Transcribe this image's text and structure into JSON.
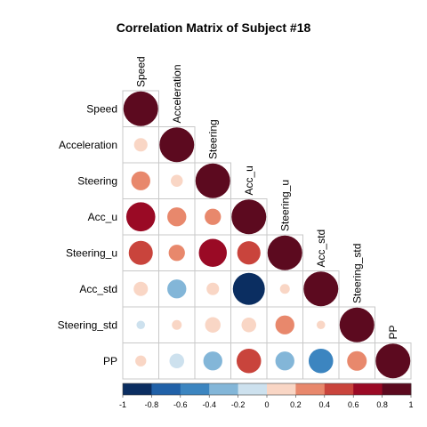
{
  "chart_data": {
    "type": "heatmap",
    "title": "Correlation Matrix of Subject #18",
    "shape": "lower-triangle circles",
    "variables": [
      "Speed",
      "Acceleration",
      "Steering",
      "Acc_u",
      "Steering_u",
      "Acc_std",
      "Steering_std",
      "PP"
    ],
    "matrix": [
      [
        1.0
      ],
      [
        0.15,
        1.0
      ],
      [
        0.3,
        0.12,
        1.0
      ],
      [
        0.7,
        0.3,
        0.22,
        1.0
      ],
      [
        0.48,
        0.22,
        0.65,
        0.45,
        1.0
      ],
      [
        0.17,
        -0.3,
        0.13,
        -0.85,
        0.08,
        1.0
      ],
      [
        -0.06,
        0.08,
        0.2,
        0.18,
        0.3,
        0.06,
        1.0
      ],
      [
        0.1,
        -0.18,
        -0.3,
        0.5,
        -0.3,
        -0.5,
        0.32,
        1.0
      ]
    ],
    "colorbar": {
      "ticks": [
        "-1",
        "-0.8",
        "-0.6",
        "-0.4",
        "-0.2",
        "0",
        "0.2",
        "0.4",
        "0.6",
        "0.8",
        "1"
      ],
      "colors": [
        "#0b2e61",
        "#2161a8",
        "#3c85c0",
        "#83b6d8",
        "#cde1ee",
        "#f9d6c5",
        "#e8886c",
        "#c9443c",
        "#9a0a25",
        "#5c0a1f"
      ]
    },
    "grid": true,
    "legend": "bottom"
  }
}
